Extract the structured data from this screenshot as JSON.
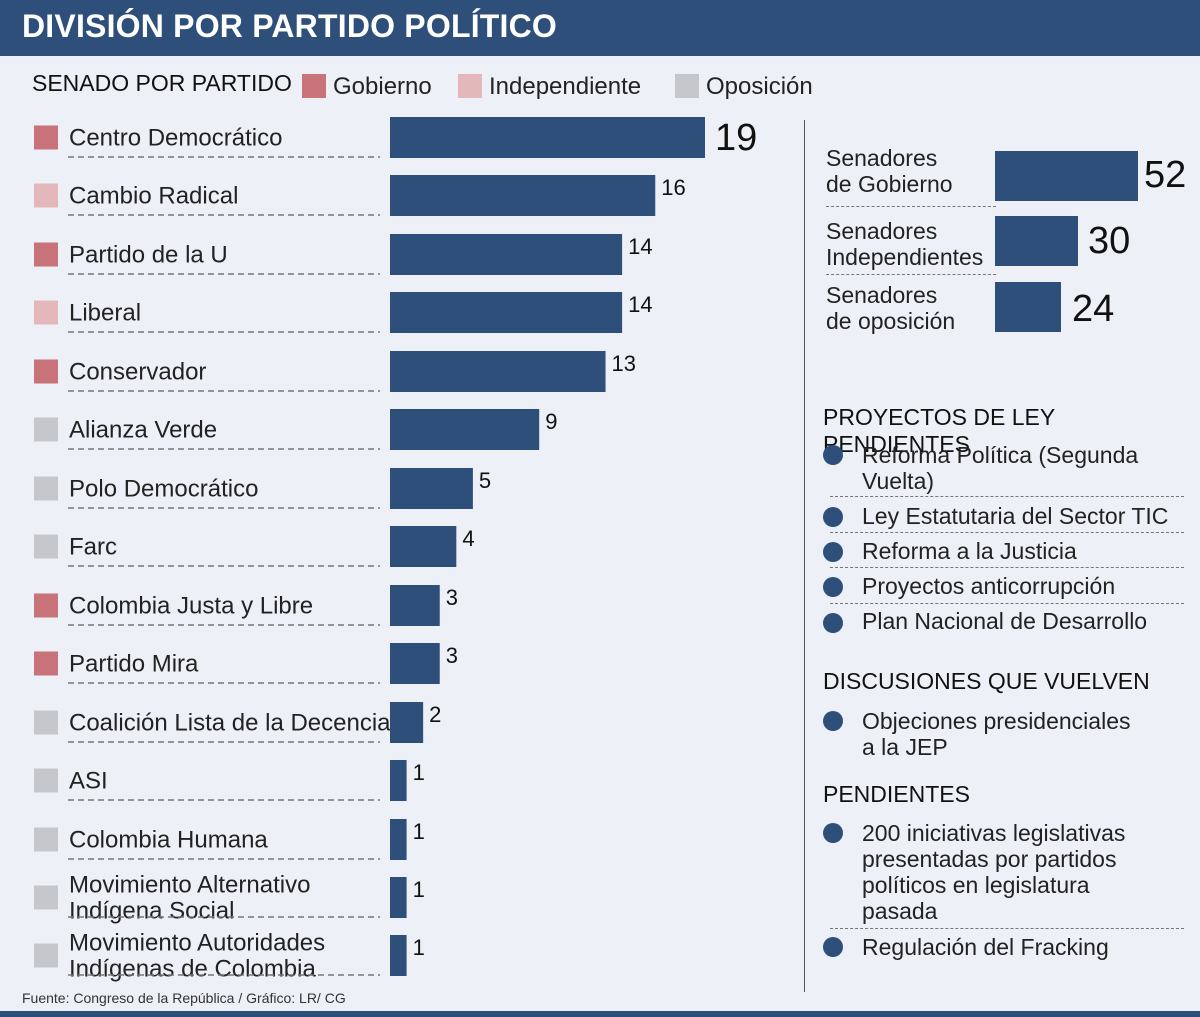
{
  "header": {
    "title": "DIVISIÓN  POR PARTIDO POLÍTICO"
  },
  "legend": {
    "title": "SENADO POR PARTIDO",
    "items": [
      {
        "label": "Gobierno",
        "color": "#c8727a"
      },
      {
        "label": "Independiente",
        "color": "#e4b7bb"
      },
      {
        "label": "Oposición",
        "color": "#c6c7cc"
      }
    ]
  },
  "chart_data": {
    "type": "bar",
    "orientation": "horizontal",
    "categories": [
      "Centro Democrático",
      "Cambio Radical",
      "Partido de la U",
      "Liberal",
      "Conservador",
      "Alianza Verde",
      "Polo Democrático",
      "Farc",
      "Colombia Justa y Libre",
      "Partido Mira",
      "Coalición Lista de la Decencia",
      "ASI",
      "Colombia Humana",
      "Movimiento Alternativo Indígena Social",
      "Movimiento Autoridades Indígenas de Colombia"
    ],
    "values": [
      19,
      16,
      14,
      14,
      13,
      9,
      5,
      4,
      3,
      3,
      2,
      1,
      1,
      1,
      1
    ],
    "groups": [
      "Gobierno",
      "Independiente",
      "Gobierno",
      "Independiente",
      "Gobierno",
      "Oposición",
      "Oposición",
      "Oposición",
      "Gobierno",
      "Gobierno",
      "Oposición",
      "Oposición",
      "Oposición",
      "Oposición",
      "Oposición"
    ],
    "bar_color": "#2d4f7a",
    "group_colors": {
      "Gobierno": "#c8727a",
      "Independiente": "#e4b7bb",
      "Oposición": "#c6c7cc"
    },
    "xlim": [
      0,
      19
    ]
  },
  "summary": {
    "items": [
      {
        "label_line1": "Senadores",
        "label_line2": "de Gobierno",
        "value": "52"
      },
      {
        "label_line1": "Senadores",
        "label_line2": "Independientes",
        "value": "30"
      },
      {
        "label_line1": "Senadores",
        "label_line2": "de oposición",
        "value": "24"
      }
    ]
  },
  "proyectos": {
    "heading": "PROYECTOS DE LEY PENDIENTES",
    "items": [
      {
        "line1": "Reforma Política (Segunda",
        "line2": "Vuelta)"
      },
      {
        "line1": "Ley Estatutaria del Sector TIC",
        "line2": ""
      },
      {
        "line1": "Reforma a la Justicia",
        "line2": ""
      },
      {
        "line1": "Proyectos anticorrupción",
        "line2": ""
      },
      {
        "line1": "Plan Nacional de Desarrollo",
        "line2": ""
      }
    ]
  },
  "discusiones": {
    "heading": "DISCUSIONES QUE VUELVEN",
    "items": [
      {
        "line1": "Objeciones presidenciales",
        "line2": "a la JEP"
      }
    ]
  },
  "pendientes": {
    "heading": "PENDIENTES",
    "items": [
      {
        "lines": [
          "200 iniciativas legislativas",
          "presentadas por partidos",
          "políticos en legislatura",
          "pasada"
        ]
      },
      {
        "lines": [
          "Regulación del Fracking"
        ]
      }
    ]
  },
  "footer": {
    "source": "Fuente: Congreso de la República  / Gráfico: LR/ CG"
  }
}
